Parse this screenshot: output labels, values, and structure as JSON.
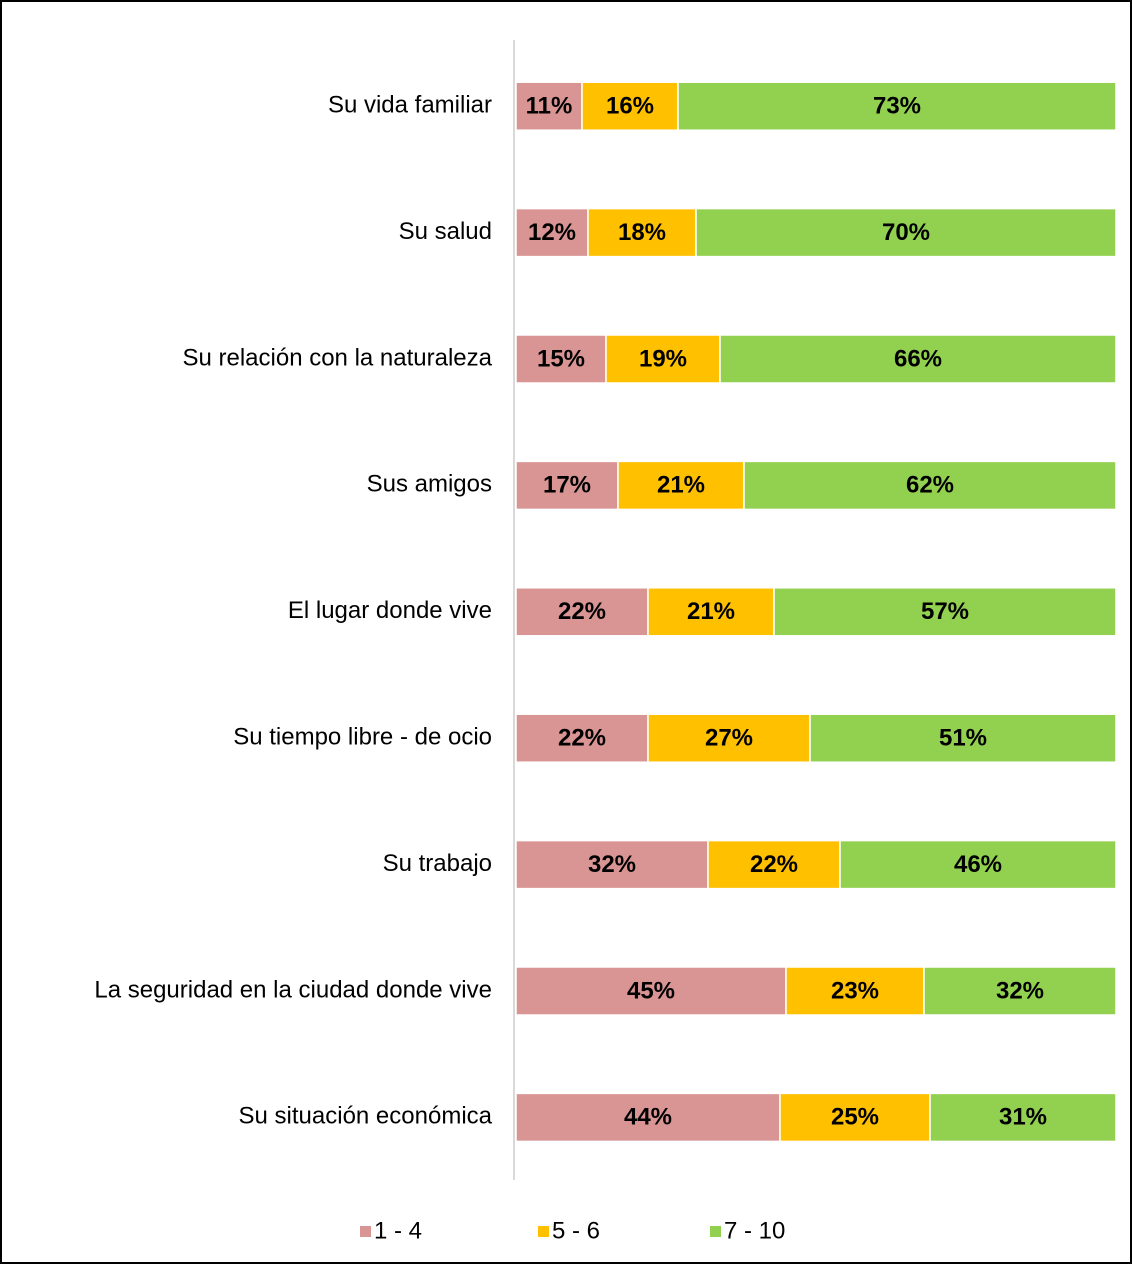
{
  "chart_data": {
    "type": "stacked_bar_horizontal",
    "categories": [
      "Su vida familiar",
      "Su salud",
      "Su relación con la naturaleza",
      "Sus amigos",
      "El lugar donde vive",
      "Su tiempo libre - de ocio",
      "Su trabajo",
      "La seguridad en la ciudad donde vive",
      "Su situación económica"
    ],
    "xlim": [
      0,
      100
    ],
    "series": [
      {
        "name": "1 - 4",
        "color": "#d99594",
        "values": [
          11,
          12,
          15,
          17,
          22,
          22,
          32,
          45,
          44
        ],
        "value_labels": [
          "11%",
          "12%",
          "15%",
          "17%",
          "22%",
          "22%",
          "32%",
          "45%",
          "44%"
        ]
      },
      {
        "name": "5 - 6",
        "color": "#ffc000",
        "values": [
          16,
          18,
          19,
          21,
          21,
          27,
          22,
          23,
          25
        ],
        "value_labels": [
          "16%",
          "18%",
          "19%",
          "21%",
          "21%",
          "27%",
          "22%",
          "23%",
          "25%"
        ]
      },
      {
        "name": "7 - 10",
        "color": "#92d050",
        "values": [
          73,
          70,
          66,
          62,
          57,
          51,
          46,
          32,
          31
        ],
        "value_labels": [
          "73%",
          "70%",
          "66%",
          "62%",
          "57%",
          "51%",
          "46%",
          "32%",
          "31%"
        ]
      }
    ],
    "legend": "bottom"
  }
}
